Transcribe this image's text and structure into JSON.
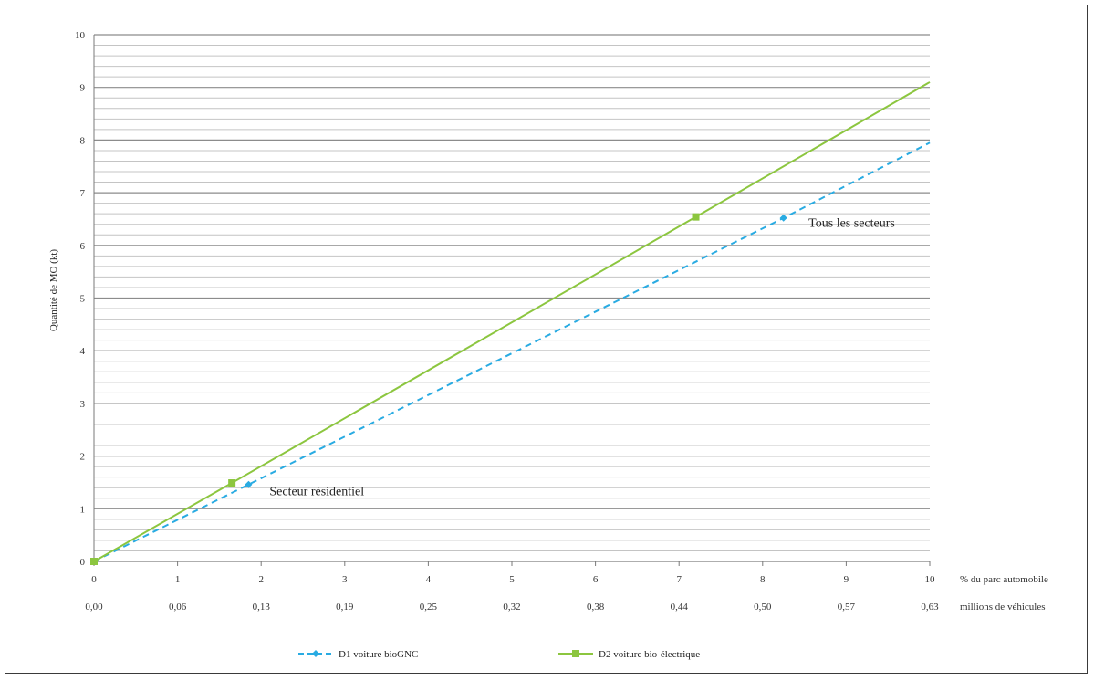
{
  "chart_data": {
    "type": "line",
    "ylabel": "Quantité de MO (kt)",
    "ylim": [
      0,
      10
    ],
    "yticks": [
      0,
      1,
      2,
      3,
      4,
      5,
      6,
      7,
      8,
      9,
      10
    ],
    "minor_grid_step": 0.2,
    "xlim": [
      0,
      10
    ],
    "xticks": [
      0,
      1,
      2,
      3,
      4,
      5,
      6,
      7,
      8,
      9,
      10
    ],
    "xticks_secondary": [
      "0,00",
      "0,06",
      "0,13",
      "0,19",
      "0,25",
      "0,32",
      "0,38",
      "0,44",
      "0,50",
      "0,57",
      "0,63"
    ],
    "xlabel": "% du parc automobile",
    "xlabel_secondary": "millions de véhicules",
    "series": [
      {
        "name": "D1 voiture bioGNC",
        "color": "#29abe2",
        "dashed": true,
        "marker": "diamond",
        "x": [
          0,
          1.85,
          8.25,
          10
        ],
        "y": [
          0,
          1.46,
          6.52,
          7.95
        ]
      },
      {
        "name": "D2 voiture bio-électrique",
        "color": "#8cc63f",
        "dashed": false,
        "marker": "square",
        "x": [
          0,
          1.65,
          7.2,
          10
        ],
        "y": [
          0,
          1.49,
          6.54,
          9.1
        ]
      }
    ],
    "annotations": [
      {
        "text": "Secteur résidentiel",
        "x": 2.1,
        "y": 1.26
      },
      {
        "text": "Tous les  secteurs",
        "x": 8.55,
        "y": 6.35
      }
    ],
    "grid": true,
    "legend_position": "bottom"
  }
}
